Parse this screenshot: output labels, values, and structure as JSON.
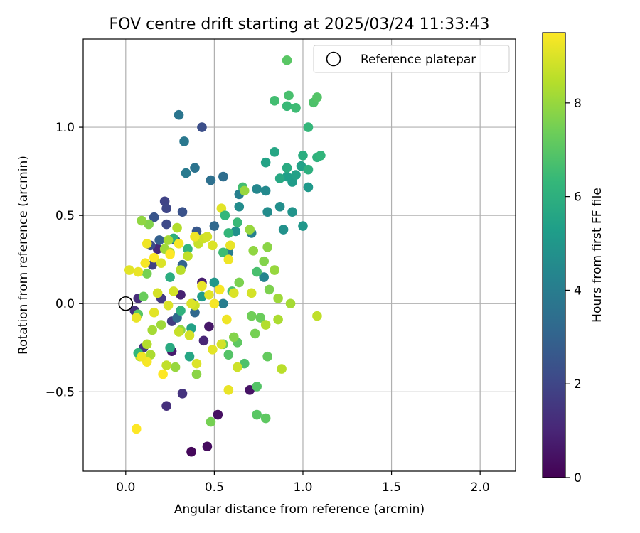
{
  "chart_data": {
    "type": "scatter",
    "title": "FOV centre drift starting at 2025/03/24 11:33:43",
    "xlabel": "Angular distance from reference (arcmin)",
    "ylabel": "Rotation from reference (arcmin)",
    "xlim": [
      -0.24,
      2.2
    ],
    "ylim": [
      -0.95,
      1.5
    ],
    "xticks": [
      0.0,
      0.5,
      1.0,
      1.5,
      2.0
    ],
    "xtick_labels": [
      "0.0",
      "0.5",
      "1.0",
      "1.5",
      "2.0"
    ],
    "yticks": [
      -0.5,
      0.0,
      0.5,
      1.0
    ],
    "ytick_labels": [
      "−0.5",
      "0.0",
      "0.5",
      "1.0"
    ],
    "grid": true,
    "legend": {
      "placement": "top-right",
      "entries": [
        {
          "label": "Reference platepar",
          "marker": "open-circle"
        }
      ]
    },
    "reference_point": {
      "x": 0.0,
      "y": 0.0
    },
    "colormap": "viridis",
    "colorbar": {
      "label": "Hours from first FF file",
      "range": [
        0,
        9.5
      ],
      "ticks": [
        0,
        2,
        4,
        6,
        8
      ],
      "tick_labels": [
        "0",
        "2",
        "4",
        "6",
        "8"
      ],
      "stops": [
        "#440154",
        "#482878",
        "#3e4a89",
        "#31688e",
        "#26828e",
        "#1f9e89",
        "#35b779",
        "#6ece58",
        "#b5de2b",
        "#fde725"
      ]
    },
    "points": [
      {
        "x": 0.37,
        "y": -0.84,
        "h": 0.2
      },
      {
        "x": 0.46,
        "y": -0.81,
        "h": 0.3
      },
      {
        "x": 0.52,
        "y": -0.63,
        "h": 0.4
      },
      {
        "x": 0.7,
        "y": -0.49,
        "h": 0.5
      },
      {
        "x": 0.47,
        "y": -0.13,
        "h": 0.6
      },
      {
        "x": 0.26,
        "y": -0.27,
        "h": 0.7
      },
      {
        "x": 0.43,
        "y": 0.12,
        "h": 0.8
      },
      {
        "x": 0.31,
        "y": 0.05,
        "h": 0.9
      },
      {
        "x": 0.44,
        "y": -0.21,
        "h": 1.0
      },
      {
        "x": 0.18,
        "y": 0.31,
        "h": 1.1
      },
      {
        "x": 0.07,
        "y": 0.03,
        "h": 1.2
      },
      {
        "x": 0.05,
        "y": -0.04,
        "h": 1.3
      },
      {
        "x": 0.23,
        "y": -0.58,
        "h": 1.3
      },
      {
        "x": 0.32,
        "y": -0.51,
        "h": 1.4
      },
      {
        "x": 0.1,
        "y": -0.25,
        "h": 1.5
      },
      {
        "x": 0.2,
        "y": 0.03,
        "h": 1.6
      },
      {
        "x": 0.26,
        "y": -0.1,
        "h": 1.7
      },
      {
        "x": 0.15,
        "y": 0.22,
        "h": 1.8
      },
      {
        "x": 0.22,
        "y": 0.58,
        "h": 1.9
      },
      {
        "x": 0.23,
        "y": 0.54,
        "h": 2.0
      },
      {
        "x": 0.23,
        "y": 0.45,
        "h": 2.1
      },
      {
        "x": 0.14,
        "y": 0.33,
        "h": 2.2
      },
      {
        "x": 0.43,
        "y": 1.0,
        "h": 2.3
      },
      {
        "x": 0.32,
        "y": 0.52,
        "h": 2.4
      },
      {
        "x": 0.16,
        "y": 0.49,
        "h": 2.5
      },
      {
        "x": 0.4,
        "y": 0.41,
        "h": 2.6
      },
      {
        "x": 0.28,
        "y": 0.36,
        "h": 2.7
      },
      {
        "x": 0.38,
        "y": 0.0,
        "h": 2.8
      },
      {
        "x": 0.19,
        "y": 0.36,
        "h": 2.9
      },
      {
        "x": 0.32,
        "y": 0.22,
        "h": 3.0
      },
      {
        "x": 0.41,
        "y": 0.36,
        "h": 3.1
      },
      {
        "x": 0.5,
        "y": 0.44,
        "h": 3.2
      },
      {
        "x": 0.39,
        "y": -0.05,
        "h": 3.2
      },
      {
        "x": 0.29,
        "y": -0.08,
        "h": 3.3
      },
      {
        "x": 0.55,
        "y": 0.72,
        "h": 3.4
      },
      {
        "x": 0.48,
        "y": 0.7,
        "h": 3.5
      },
      {
        "x": 0.39,
        "y": 0.77,
        "h": 3.6
      },
      {
        "x": 0.3,
        "y": 1.07,
        "h": 3.7
      },
      {
        "x": 0.33,
        "y": 0.92,
        "h": 3.8
      },
      {
        "x": 0.34,
        "y": 0.74,
        "h": 3.9
      },
      {
        "x": 0.55,
        "y": 0.0,
        "h": 4.0
      },
      {
        "x": 0.58,
        "y": 0.29,
        "h": 4.0
      },
      {
        "x": 0.64,
        "y": 0.62,
        "h": 4.1
      },
      {
        "x": 0.71,
        "y": 0.4,
        "h": 4.2
      },
      {
        "x": 0.78,
        "y": 0.15,
        "h": 4.3
      },
      {
        "x": 0.74,
        "y": 0.65,
        "h": 4.4
      },
      {
        "x": 0.79,
        "y": 0.64,
        "h": 4.5
      },
      {
        "x": 0.8,
        "y": 0.52,
        "h": 4.6
      },
      {
        "x": 0.87,
        "y": 0.55,
        "h": 4.7
      },
      {
        "x": 0.89,
        "y": 0.42,
        "h": 4.8
      },
      {
        "x": 0.94,
        "y": 0.52,
        "h": 4.9
      },
      {
        "x": 1.0,
        "y": 0.44,
        "h": 5.0
      },
      {
        "x": 1.03,
        "y": 0.66,
        "h": 5.1
      },
      {
        "x": 0.94,
        "y": 0.69,
        "h": 5.2
      },
      {
        "x": 0.91,
        "y": 0.72,
        "h": 5.3
      },
      {
        "x": 0.96,
        "y": 0.73,
        "h": 5.4
      },
      {
        "x": 0.99,
        "y": 0.78,
        "h": 5.4
      },
      {
        "x": 0.79,
        "y": 0.8,
        "h": 5.5
      },
      {
        "x": 0.84,
        "y": 0.86,
        "h": 5.6
      },
      {
        "x": 0.87,
        "y": 0.71,
        "h": 5.7
      },
      {
        "x": 0.91,
        "y": 0.77,
        "h": 5.8
      },
      {
        "x": 1.0,
        "y": 0.84,
        "h": 5.9
      },
      {
        "x": 1.03,
        "y": 0.76,
        "h": 6.0
      },
      {
        "x": 1.08,
        "y": 0.83,
        "h": 6.1
      },
      {
        "x": 1.1,
        "y": 0.84,
        "h": 6.2
      },
      {
        "x": 1.03,
        "y": 1.0,
        "h": 6.3
      },
      {
        "x": 0.91,
        "y": 1.12,
        "h": 6.4
      },
      {
        "x": 0.96,
        "y": 1.11,
        "h": 6.5
      },
      {
        "x": 0.84,
        "y": 1.15,
        "h": 6.6
      },
      {
        "x": 0.92,
        "y": 1.18,
        "h": 6.7
      },
      {
        "x": 1.06,
        "y": 1.14,
        "h": 6.8
      },
      {
        "x": 1.08,
        "y": 1.17,
        "h": 6.9
      },
      {
        "x": 0.91,
        "y": 1.38,
        "h": 7.0
      },
      {
        "x": 0.64,
        "y": 0.55,
        "h": 4.6
      },
      {
        "x": 0.62,
        "y": 0.41,
        "h": 4.8
      },
      {
        "x": 0.5,
        "y": 0.12,
        "h": 5.0
      },
      {
        "x": 0.43,
        "y": 0.04,
        "h": 5.2
      },
      {
        "x": 0.37,
        "y": -0.14,
        "h": 5.4
      },
      {
        "x": 0.36,
        "y": -0.3,
        "h": 5.6
      },
      {
        "x": 0.25,
        "y": -0.25,
        "h": 5.8
      },
      {
        "x": 0.25,
        "y": 0.15,
        "h": 5.9
      },
      {
        "x": 0.27,
        "y": 0.37,
        "h": 6.0
      },
      {
        "x": 0.31,
        "y": -0.04,
        "h": 6.1
      },
      {
        "x": 0.35,
        "y": 0.31,
        "h": 6.2
      },
      {
        "x": 0.58,
        "y": 0.4,
        "h": 6.3
      },
      {
        "x": 0.63,
        "y": 0.46,
        "h": 6.4
      },
      {
        "x": 0.66,
        "y": 0.66,
        "h": 6.6
      },
      {
        "x": 0.74,
        "y": 0.18,
        "h": 6.7
      },
      {
        "x": 0.67,
        "y": -0.34,
        "h": 6.8
      },
      {
        "x": 0.74,
        "y": -0.47,
        "h": 6.9
      },
      {
        "x": 0.74,
        "y": -0.63,
        "h": 7.0
      },
      {
        "x": 0.79,
        "y": -0.65,
        "h": 7.1
      },
      {
        "x": 0.8,
        "y": -0.3,
        "h": 7.2
      },
      {
        "x": 0.76,
        "y": -0.08,
        "h": 7.3
      },
      {
        "x": 0.71,
        "y": -0.07,
        "h": 7.4
      },
      {
        "x": 0.73,
        "y": -0.17,
        "h": 7.5
      },
      {
        "x": 0.81,
        "y": 0.08,
        "h": 7.6
      },
      {
        "x": 0.78,
        "y": 0.24,
        "h": 7.7
      },
      {
        "x": 0.8,
        "y": 0.32,
        "h": 7.8
      },
      {
        "x": 0.72,
        "y": 0.3,
        "h": 7.9
      },
      {
        "x": 0.7,
        "y": 0.42,
        "h": 8.0
      },
      {
        "x": 0.84,
        "y": 0.19,
        "h": 8.0
      },
      {
        "x": 0.86,
        "y": 0.03,
        "h": 8.1
      },
      {
        "x": 0.93,
        "y": 0.0,
        "h": 8.2
      },
      {
        "x": 0.86,
        "y": -0.09,
        "h": 8.3
      },
      {
        "x": 0.79,
        "y": -0.12,
        "h": 8.4
      },
      {
        "x": 0.88,
        "y": -0.37,
        "h": 8.5
      },
      {
        "x": 1.08,
        "y": -0.07,
        "h": 8.6
      },
      {
        "x": 0.55,
        "y": 0.29,
        "h": 6.5
      },
      {
        "x": 0.6,
        "y": 0.07,
        "h": 6.7
      },
      {
        "x": 0.58,
        "y": -0.29,
        "h": 6.9
      },
      {
        "x": 0.63,
        "y": -0.22,
        "h": 7.1
      },
      {
        "x": 0.55,
        "y": -0.23,
        "h": 7.3
      },
      {
        "x": 0.48,
        "y": -0.67,
        "h": 7.5
      },
      {
        "x": 0.64,
        "y": 0.12,
        "h": 7.6
      },
      {
        "x": 0.61,
        "y": -0.19,
        "h": 7.7
      },
      {
        "x": 0.4,
        "y": -0.4,
        "h": 7.8
      },
      {
        "x": 0.31,
        "y": -0.15,
        "h": 7.9
      },
      {
        "x": 0.28,
        "y": -0.36,
        "h": 8.0
      },
      {
        "x": 0.2,
        "y": -0.12,
        "h": 8.1
      },
      {
        "x": 0.15,
        "y": -0.15,
        "h": 8.2
      },
      {
        "x": 0.14,
        "y": -0.29,
        "h": 8.3
      },
      {
        "x": 0.12,
        "y": -0.23,
        "h": 8.4
      },
      {
        "x": 0.08,
        "y": -0.3,
        "h": 8.5
      },
      {
        "x": 0.07,
        "y": -0.28,
        "h": 6.3
      },
      {
        "x": 0.07,
        "y": -0.06,
        "h": 7.0
      },
      {
        "x": 0.1,
        "y": 0.04,
        "h": 7.3
      },
      {
        "x": 0.12,
        "y": 0.17,
        "h": 7.5
      },
      {
        "x": 0.13,
        "y": 0.45,
        "h": 7.7
      },
      {
        "x": 0.09,
        "y": 0.47,
        "h": 7.9
      },
      {
        "x": 0.22,
        "y": 0.31,
        "h": 8.1
      },
      {
        "x": 0.24,
        "y": 0.36,
        "h": 8.2
      },
      {
        "x": 0.25,
        "y": 0.29,
        "h": 8.3
      },
      {
        "x": 0.29,
        "y": 0.43,
        "h": 8.4
      },
      {
        "x": 0.31,
        "y": 0.19,
        "h": 8.5
      },
      {
        "x": 0.35,
        "y": 0.27,
        "h": 8.6
      },
      {
        "x": 0.41,
        "y": 0.34,
        "h": 8.7
      },
      {
        "x": 0.44,
        "y": 0.37,
        "h": 8.8
      },
      {
        "x": 0.46,
        "y": 0.38,
        "h": 8.9
      },
      {
        "x": 0.49,
        "y": 0.33,
        "h": 9.0
      },
      {
        "x": 0.54,
        "y": 0.54,
        "h": 9.1
      },
      {
        "x": 0.59,
        "y": 0.33,
        "h": 9.2
      },
      {
        "x": 0.58,
        "y": 0.25,
        "h": 9.3
      },
      {
        "x": 0.53,
        "y": 0.08,
        "h": 9.4
      },
      {
        "x": 0.5,
        "y": 0.0,
        "h": 9.4
      },
      {
        "x": 0.57,
        "y": -0.09,
        "h": 9.3
      },
      {
        "x": 0.58,
        "y": -0.49,
        "h": 9.2
      },
      {
        "x": 0.49,
        "y": -0.26,
        "h": 9.1
      },
      {
        "x": 0.4,
        "y": -0.34,
        "h": 9.0
      },
      {
        "x": 0.36,
        "y": -0.18,
        "h": 8.9
      },
      {
        "x": 0.39,
        "y": -0.01,
        "h": 8.8
      },
      {
        "x": 0.3,
        "y": -0.16,
        "h": 8.7
      },
      {
        "x": 0.23,
        "y": -0.35,
        "h": 8.6
      },
      {
        "x": 0.21,
        "y": -0.4,
        "h": 9.5
      },
      {
        "x": 0.12,
        "y": -0.33,
        "h": 9.4
      },
      {
        "x": 0.09,
        "y": -0.3,
        "h": 9.3
      },
      {
        "x": 0.06,
        "y": -0.71,
        "h": 9.5
      },
      {
        "x": 0.06,
        "y": -0.08,
        "h": 9.2
      },
      {
        "x": 0.16,
        "y": -0.05,
        "h": 9.1
      },
      {
        "x": 0.24,
        "y": -0.01,
        "h": 9.0
      },
      {
        "x": 0.27,
        "y": 0.07,
        "h": 8.9
      },
      {
        "x": 0.25,
        "y": 0.28,
        "h": 9.5
      },
      {
        "x": 0.3,
        "y": 0.34,
        "h": 9.4
      },
      {
        "x": 0.39,
        "y": 0.38,
        "h": 9.3
      },
      {
        "x": 0.43,
        "y": 0.1,
        "h": 9.2
      },
      {
        "x": 0.47,
        "y": 0.05,
        "h": 9.1
      },
      {
        "x": 0.37,
        "y": 0.0,
        "h": 9.0
      },
      {
        "x": 0.18,
        "y": 0.06,
        "h": 8.9
      },
      {
        "x": 0.16,
        "y": 0.26,
        "h": 9.5
      },
      {
        "x": 0.11,
        "y": 0.23,
        "h": 9.4
      },
      {
        "x": 0.12,
        "y": 0.34,
        "h": 9.3
      },
      {
        "x": 0.07,
        "y": 0.18,
        "h": 9.2
      },
      {
        "x": 0.02,
        "y": 0.19,
        "h": 9.1
      },
      {
        "x": 0.2,
        "y": 0.23,
        "h": 9.0
      },
      {
        "x": 0.54,
        "y": -0.23,
        "h": 8.9
      },
      {
        "x": 0.63,
        "y": -0.36,
        "h": 8.8
      },
      {
        "x": 0.61,
        "y": 0.06,
        "h": 9.0
      },
      {
        "x": 0.71,
        "y": 0.06,
        "h": 8.9
      },
      {
        "x": 0.56,
        "y": 0.5,
        "h": 6.3
      },
      {
        "x": 0.67,
        "y": 0.64,
        "h": 8.0
      }
    ]
  }
}
